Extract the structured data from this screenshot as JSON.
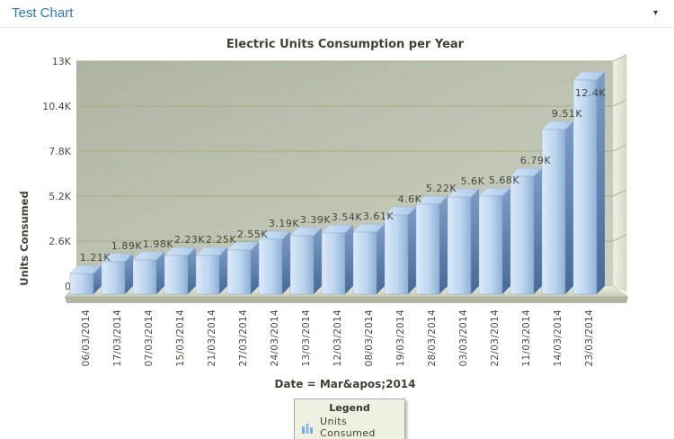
{
  "header": {
    "title": "Test Chart",
    "caret_icon": "▾"
  },
  "chart_data": {
    "type": "bar",
    "style": "3d-column",
    "title": "Electric Units Consumption per Year",
    "xlabel": "Date = Mar&apos;2014",
    "ylabel": "Units Consumed",
    "categories": [
      "06/03/2014",
      "17/03/2014",
      "07/03/2014",
      "15/03/2014",
      "21/03/2014",
      "27/03/2014",
      "24/03/2014",
      "13/03/2014",
      "12/03/2014",
      "08/03/2014",
      "19/03/2014",
      "28/03/2014",
      "03/03/2014",
      "22/03/2014",
      "11/03/2014",
      "14/03/2014",
      "23/03/2014"
    ],
    "series": [
      {
        "name": "Units Consumed",
        "values": [
          1210,
          1890,
          1980,
          2230,
          2250,
          2550,
          3190,
          3390,
          3540,
          3610,
          4600,
          5220,
          5600,
          5680,
          6790,
          9510,
          12400
        ]
      }
    ],
    "value_labels": [
      "1.21K",
      "1.89K",
      "1.98K",
      "2.23K",
      "2.25K",
      "2.55K",
      "3.19K",
      "3.39K",
      "3.54K",
      "3.61K",
      "4.6K",
      "5.22K",
      "5.6K",
      "5.68K",
      "6.79K",
      "9.51K",
      "12.4K"
    ],
    "ylim": [
      0,
      13000
    ],
    "ytick_labels": [
      "0",
      "2.6K",
      "5.2K",
      "7.8K",
      "10.4K",
      "13K"
    ],
    "grid": true,
    "legend": {
      "title": "Legend",
      "position": "bottom-center",
      "items": [
        {
          "label": "Units Consumed",
          "icon": "bar-chart-icon"
        }
      ]
    }
  },
  "colors": {
    "header_title": "#2879b4",
    "plot_bg_from": "#aeb4a2",
    "plot_bg_to": "#cdd1c1",
    "gridline": "#a2b080",
    "bar_front_light": "#dbeafa",
    "bar_front_dark": "#8eb1d8",
    "bar_side_top": "#7e9cc4",
    "bar_side_bottom": "#486997",
    "bar_top": "#c9def4",
    "wall_light": "#f0f1e6",
    "wall_dark": "#d7dac6",
    "floor_light": "#eef0e1",
    "floor_dark": "#c5c9b4",
    "floor_edge": "#b2b6a0",
    "label_text": "#45483b",
    "title_text": "#3e4334",
    "legend_icon_blue": "#7cabdd"
  }
}
